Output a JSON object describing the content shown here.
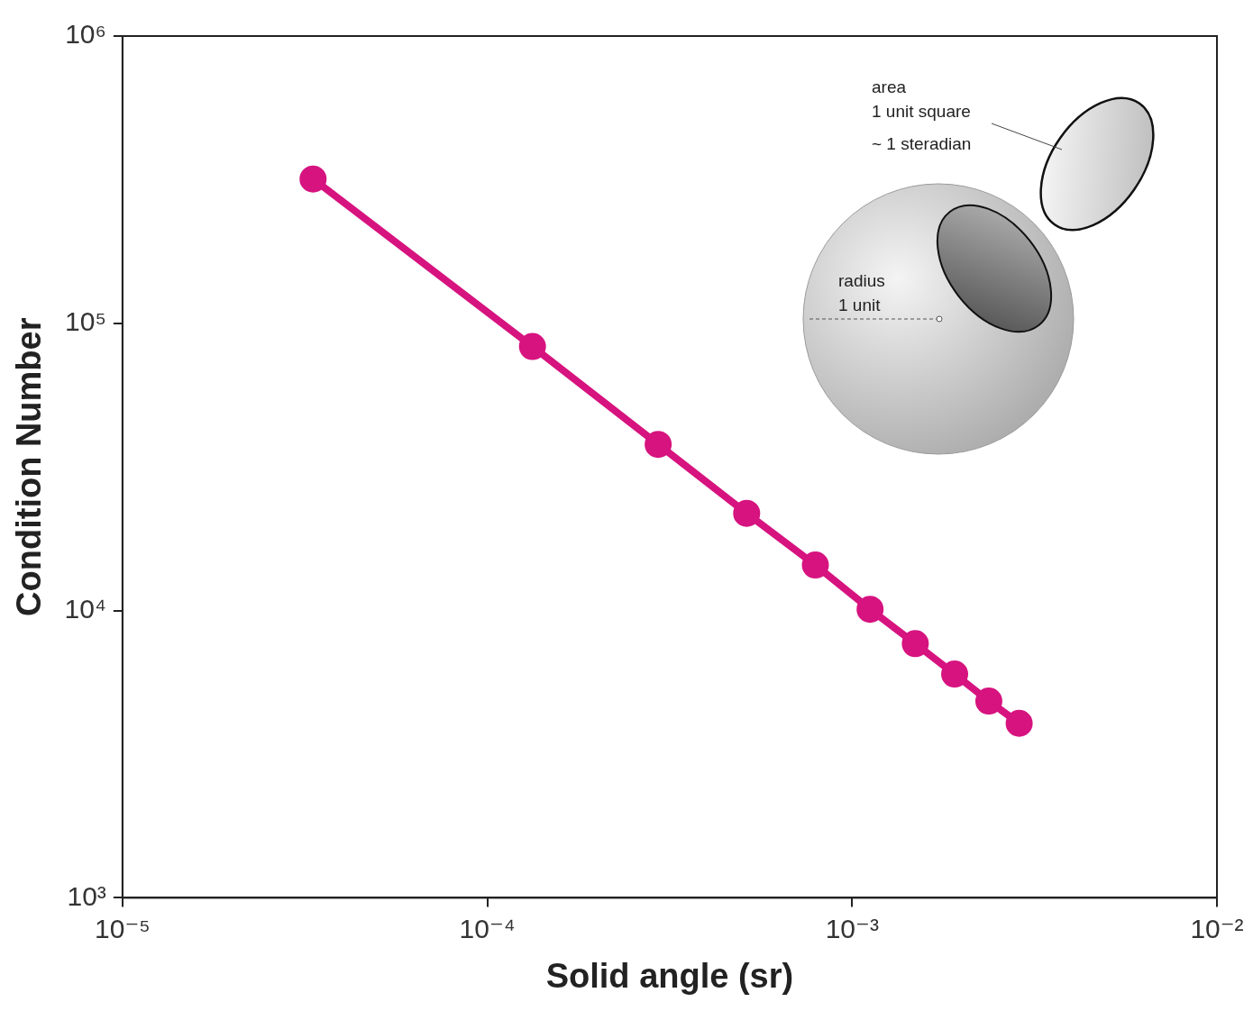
{
  "chart_data": {
    "type": "line",
    "x_label": "Solid angle (sr)",
    "y_label": "Condition Number",
    "x": [
      3.33e-05,
      0.000133,
      0.000294,
      0.000514,
      0.000793,
      0.00112,
      0.00149,
      0.00191,
      0.00237,
      0.00287
    ],
    "values": [
      318000,
      83000,
      37900,
      21800,
      14400,
      10100,
      7670,
      6010,
      4840,
      4050
    ],
    "color": "#d6137f",
    "marker": "circle",
    "line_style": "solid",
    "log": true,
    "grid": false,
    "xlim": [
      1e-05,
      0.01
    ],
    "ylim": [
      1000,
      1000000
    ],
    "xticks": [
      {
        "value": 1e-05,
        "label": "10⁻⁵"
      },
      {
        "value": 0.0001,
        "label": "10⁻⁴"
      },
      {
        "value": 0.001,
        "label": "10⁻³"
      },
      {
        "value": 0.01,
        "label": "10⁻²"
      }
    ],
    "yticks": [
      {
        "value": 1000,
        "label": "10³"
      },
      {
        "value": 10000,
        "label": "10⁴"
      },
      {
        "value": 100000,
        "label": "10⁵"
      },
      {
        "value": 1000000,
        "label": "10⁶"
      }
    ],
    "annotations": [
      "area",
      "1 unit square",
      "~ 1 steradian",
      "radius",
      "1 unit"
    ]
  }
}
